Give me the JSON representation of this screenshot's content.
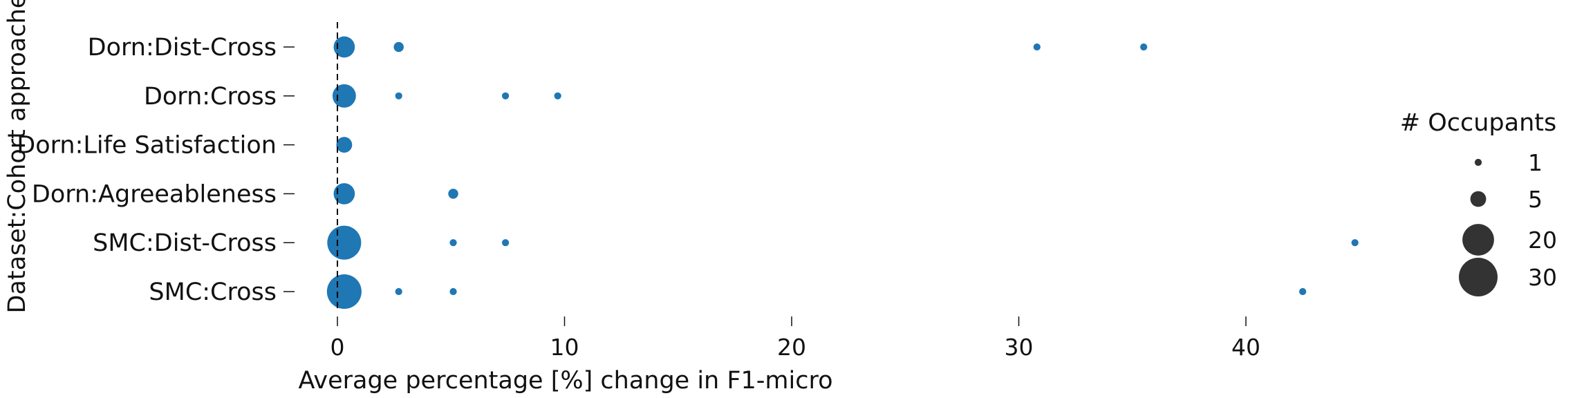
{
  "chart_data": {
    "type": "scatter",
    "xlabel": "Average percentage [%] change in F1-micro",
    "ylabel": "Dataset:Cohort approaches",
    "xlim": [
      -3.5,
      52
    ],
    "x_ticks": [
      0,
      10,
      20,
      30,
      40
    ],
    "reference_line_x": 0,
    "marker_color": "#1f77b4",
    "grid": false,
    "categories": [
      "Dorn:Dist-Cross",
      "Dorn:Cross",
      "Dorn:Life Satisfaction",
      "Dorn:Agreeableness",
      "SMC:Dist-Cross",
      "SMC:Cross"
    ],
    "points": [
      {
        "category": "Dorn:Dist-Cross",
        "x": 0.3,
        "occupants": 9
      },
      {
        "category": "Dorn:Dist-Cross",
        "x": 2.7,
        "occupants": 2
      },
      {
        "category": "Dorn:Dist-Cross",
        "x": 30.8,
        "occupants": 1
      },
      {
        "category": "Dorn:Dist-Cross",
        "x": 35.5,
        "occupants": 1
      },
      {
        "category": "Dorn:Cross",
        "x": 0.3,
        "occupants": 11
      },
      {
        "category": "Dorn:Cross",
        "x": 2.7,
        "occupants": 1
      },
      {
        "category": "Dorn:Cross",
        "x": 7.4,
        "occupants": 1
      },
      {
        "category": "Dorn:Cross",
        "x": 9.7,
        "occupants": 1
      },
      {
        "category": "Dorn:Life Satisfaction",
        "x": 0.3,
        "occupants": 5
      },
      {
        "category": "Dorn:Agreeableness",
        "x": 0.3,
        "occupants": 9
      },
      {
        "category": "Dorn:Agreeableness",
        "x": 5.1,
        "occupants": 2
      },
      {
        "category": "SMC:Dist-Cross",
        "x": 0.3,
        "occupants": 23
      },
      {
        "category": "SMC:Dist-Cross",
        "x": 5.1,
        "occupants": 1
      },
      {
        "category": "SMC:Dist-Cross",
        "x": 7.4,
        "occupants": 1
      },
      {
        "category": "SMC:Dist-Cross",
        "x": 44.8,
        "occupants": 1
      },
      {
        "category": "SMC:Cross",
        "x": 0.3,
        "occupants": 24
      },
      {
        "category": "SMC:Cross",
        "x": 2.7,
        "occupants": 1
      },
      {
        "category": "SMC:Cross",
        "x": 5.1,
        "occupants": 1
      },
      {
        "category": "SMC:Cross",
        "x": 42.5,
        "occupants": 1
      }
    ],
    "legend": {
      "title": "# Occupants",
      "position": "right",
      "color": "#333333",
      "entries": [
        {
          "label": "1",
          "size": 1
        },
        {
          "label": "5",
          "size": 5
        },
        {
          "label": "20",
          "size": 20
        },
        {
          "label": "30",
          "size": 30
        }
      ]
    }
  }
}
